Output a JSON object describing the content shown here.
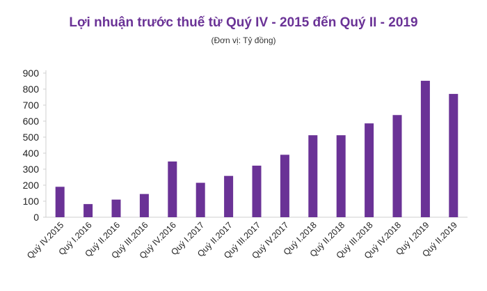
{
  "chart_data": {
    "type": "bar",
    "title": "Lợi nhuận trước thuế từ Quý IV - 2015 đến Quý II - 2019",
    "subtitle": "(Đơn vị: Tỷ đồng)",
    "xlabel": "",
    "ylabel": "",
    "categories": [
      "Quý IV.2015",
      "Quý I.2016",
      "Quý II.2016",
      "Quý III.2016",
      "Quý IV.2016",
      "Quý I.2017",
      "Quý II.2017",
      "Quý III.2017",
      "Quý IV.2017",
      "Quý I.2018",
      "Quý II.2018",
      "Quý III.2018",
      "Quý IV.2018",
      "Quý I.2019",
      "Quý II.2019"
    ],
    "values": [
      190,
      82,
      110,
      145,
      348,
      215,
      258,
      322,
      390,
      512,
      512,
      586,
      638,
      852,
      770
    ],
    "ylim": [
      0,
      900
    ],
    "yticks": [
      "0",
      "100",
      "200",
      "300",
      "400",
      "500",
      "600",
      "700",
      "800",
      "900"
    ],
    "grid": false,
    "legend": "none",
    "colors": {
      "bar": "#6a3296",
      "title": "#6a3296",
      "axis": "#cfcfcf",
      "text": "#222222"
    }
  }
}
